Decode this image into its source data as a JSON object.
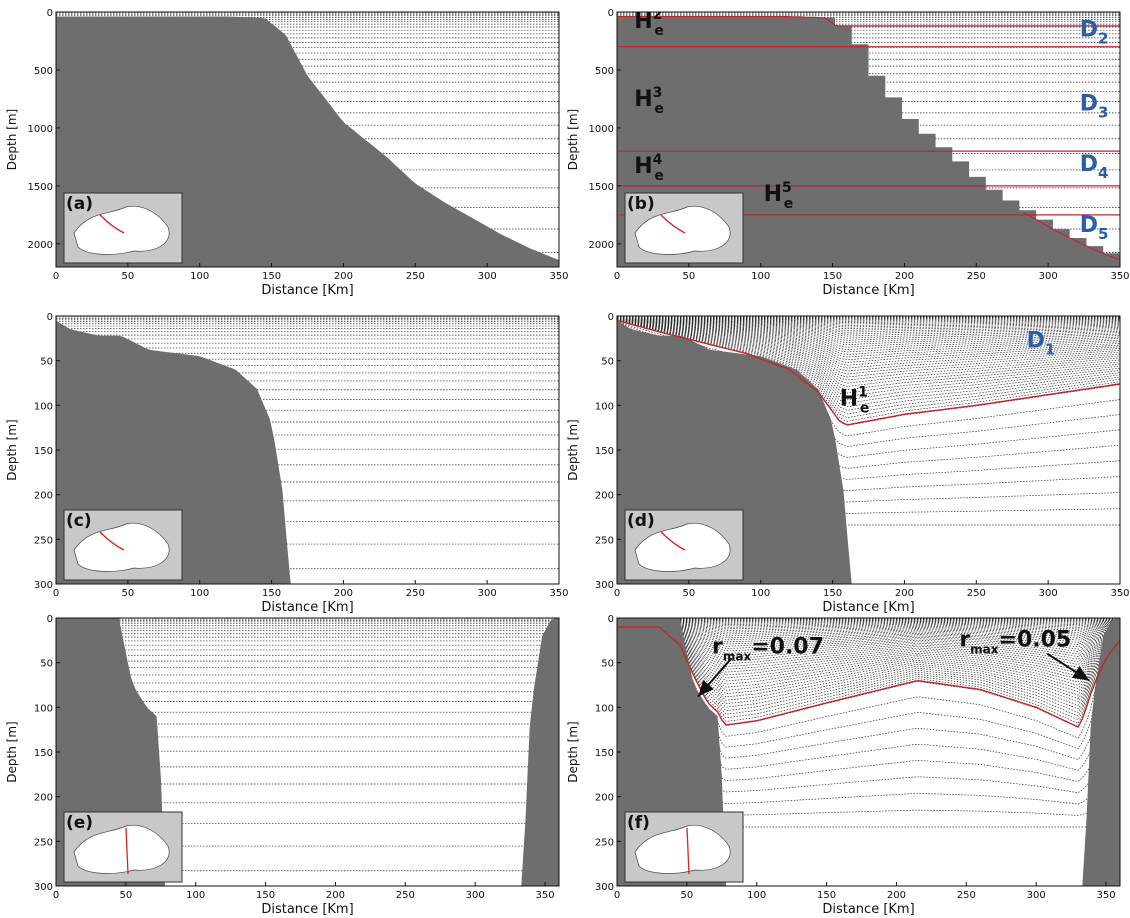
{
  "chart_data": [
    {
      "id": "a",
      "type": "area",
      "panel_label": "(a)",
      "xlabel": "Distance [Km]",
      "ylabel": "Depth [m]",
      "xlim": [
        0,
        350
      ],
      "ylim": [
        0,
        2200
      ],
      "y_inverted": true,
      "xticks": [
        0,
        50,
        100,
        150,
        200,
        250,
        300,
        350
      ],
      "yticks": [
        0,
        500,
        1000,
        1500,
        2000
      ],
      "levels": "z-levels",
      "stepped": false,
      "bathymetry": {
        "x": [
          0,
          120,
          145,
          160,
          175,
          200,
          230,
          250,
          270,
          290,
          310,
          330,
          350
        ],
        "y": [
          40,
          40,
          50,
          200,
          550,
          950,
          1250,
          1480,
          1640,
          1780,
          1920,
          2040,
          2140
        ]
      },
      "annotations": [],
      "inset_map_section": "NW shelf to basin section"
    },
    {
      "id": "b",
      "type": "area",
      "panel_label": "(b)",
      "xlabel": "Distance [Km]",
      "ylabel": "Depth [m]",
      "xlim": [
        0,
        350
      ],
      "ylim": [
        0,
        2200
      ],
      "y_inverted": true,
      "xticks": [
        0,
        50,
        100,
        150,
        200,
        250,
        300,
        350
      ],
      "yticks": [
        0,
        500,
        1000,
        1500,
        2000
      ],
      "levels": "multi-envelope",
      "stepped": true,
      "bathymetry": {
        "x": [
          0,
          120,
          145,
          160,
          175,
          200,
          230,
          250,
          270,
          290,
          310,
          330,
          350
        ],
        "y": [
          40,
          40,
          50,
          200,
          550,
          950,
          1250,
          1480,
          1640,
          1780,
          1920,
          2040,
          2140
        ]
      },
      "envelope_depths": [
        300,
        1200,
        1500,
        1750
      ],
      "annotations": [
        {
          "text": "H",
          "sup": "2",
          "sub": "e",
          "color": "#111111",
          "x": 12,
          "y": 140
        },
        {
          "text": "H",
          "sup": "3",
          "sub": "e",
          "color": "#111111",
          "x": 12,
          "y": 810
        },
        {
          "text": "H",
          "sup": "4",
          "sub": "e",
          "color": "#111111",
          "x": 12,
          "y": 1390
        },
        {
          "text": "H",
          "sup": "5",
          "sub": "e",
          "color": "#111111",
          "x": 102,
          "y": 1630
        },
        {
          "text": "D",
          "sub": "2",
          "color": "#2a5ea8",
          "x": 322,
          "y": 210
        },
        {
          "text": "D",
          "sub": "3",
          "color": "#2a5ea8",
          "x": 322,
          "y": 850
        },
        {
          "text": "D",
          "sub": "4",
          "color": "#2a5ea8",
          "x": 322,
          "y": 1370
        },
        {
          "text": "D",
          "sub": "5",
          "color": "#2a5ea8",
          "x": 322,
          "y": 1900
        }
      ],
      "inset_map_section": "NW shelf to basin section"
    },
    {
      "id": "c",
      "type": "area",
      "panel_label": "(c)",
      "xlabel": "Distance [Km]",
      "ylabel": "Depth [m]",
      "xlim": [
        0,
        350
      ],
      "ylim": [
        0,
        300
      ],
      "y_inverted": true,
      "xticks": [
        0,
        50,
        100,
        150,
        200,
        250,
        300,
        350
      ],
      "yticks": [
        0,
        50,
        100,
        150,
        200,
        250,
        300
      ],
      "levels": "z-levels",
      "stepped": false,
      "bathymetry": {
        "x": [
          0,
          10,
          30,
          45,
          65,
          100,
          125,
          140,
          150,
          158,
          163,
          165
        ],
        "y": [
          5,
          15,
          22,
          22,
          38,
          45,
          60,
          82,
          120,
          200,
          300,
          300
        ]
      },
      "annotations": [],
      "inset_map_section": "NW shelf to basin section"
    },
    {
      "id": "d",
      "type": "area",
      "panel_label": "(d)",
      "xlabel": "Distance [Km]",
      "ylabel": "Depth [m]",
      "xlim": [
        0,
        350
      ],
      "ylim": [
        0,
        300
      ],
      "y_inverted": true,
      "xticks": [
        0,
        50,
        100,
        150,
        200,
        250,
        300,
        350
      ],
      "yticks": [
        0,
        50,
        100,
        150,
        200,
        250,
        300
      ],
      "levels": "s-levels",
      "stepped": false,
      "bathymetry": {
        "x": [
          0,
          10,
          30,
          45,
          65,
          100,
          125,
          140,
          150,
          158,
          163,
          165
        ],
        "y": [
          5,
          15,
          22,
          22,
          38,
          45,
          60,
          82,
          120,
          200,
          300,
          300
        ]
      },
      "envelope": {
        "x": [
          0,
          30,
          60,
          90,
          120,
          140,
          155,
          160,
          200,
          250,
          300,
          350
        ],
        "y": [
          5,
          18,
          30,
          42,
          60,
          85,
          118,
          122,
          110,
          100,
          88,
          76
        ]
      },
      "annotations": [
        {
          "text": "D",
          "sub": "1",
          "color": "#2a5ea8",
          "x": 285,
          "y": 35
        },
        {
          "text": "H",
          "sup": "1",
          "sub": "e",
          "color": "#111111",
          "x": 155,
          "y": 100
        }
      ],
      "inset_map_section": "NW shelf to basin section"
    },
    {
      "id": "e",
      "type": "area",
      "panel_label": "(e)",
      "xlabel": "Distance [Km]",
      "ylabel": "Depth [m]",
      "xlim": [
        0,
        360
      ],
      "ylim": [
        0,
        300
      ],
      "y_inverted": true,
      "xticks": [
        0,
        50,
        100,
        150,
        200,
        250,
        300,
        350
      ],
      "yticks": [
        0,
        50,
        100,
        150,
        200,
        250,
        300
      ],
      "levels": "z-levels",
      "stepped": false,
      "bathymetry": {
        "x": [
          0,
          45,
          50,
          55,
          65,
          72,
          76,
          77,
          335,
          337,
          342,
          348,
          355,
          360
        ],
        "y": [
          0,
          0,
          40,
          75,
          100,
          110,
          200,
          300,
          300,
          150,
          80,
          20,
          0,
          0
        ]
      },
      "annotations": [],
      "inset_map_section": "N-S cross-basin section"
    },
    {
      "id": "f",
      "type": "area",
      "panel_label": "(f)",
      "xlabel": "Distance [Km]",
      "ylabel": "Depth [m]",
      "xlim": [
        0,
        360
      ],
      "ylim": [
        0,
        300
      ],
      "y_inverted": true,
      "xticks": [
        0,
        50,
        100,
        150,
        200,
        250,
        300,
        350
      ],
      "yticks": [
        0,
        50,
        100,
        150,
        200,
        250,
        300
      ],
      "levels": "s-levels",
      "stepped": false,
      "bathymetry": {
        "x": [
          0,
          45,
          50,
          55,
          65,
          72,
          76,
          77,
          335,
          337,
          342,
          348,
          355,
          360
        ],
        "y": [
          0,
          0,
          40,
          75,
          100,
          110,
          200,
          300,
          300,
          150,
          80,
          20,
          0,
          0
        ]
      },
      "envelope": {
        "x": [
          0,
          30,
          45,
          55,
          65,
          72,
          77,
          100,
          150,
          215,
          260,
          300,
          330,
          334,
          340,
          350,
          360
        ],
        "y": [
          10,
          10,
          30,
          65,
          95,
          105,
          120,
          115,
          95,
          70,
          80,
          100,
          122,
          110,
          80,
          45,
          25
        ]
      },
      "annotations": [
        {
          "text": "r",
          "sub": "max",
          "suffix": "=0.07",
          "color": "#111111",
          "x": 68,
          "y": 40
        },
        {
          "text": "r",
          "sub": "max",
          "suffix": "=0.05",
          "color": "#111111",
          "x": 245,
          "y": 32
        }
      ],
      "arrows": [
        {
          "from": [
            82,
            45
          ],
          "to": [
            58,
            88
          ]
        },
        {
          "from": [
            308,
            40
          ],
          "to": [
            338,
            70
          ]
        }
      ],
      "inset_map_section": "N-S cross-basin section"
    }
  ],
  "colors": {
    "land": "#6e6e6e",
    "line": "#2b2b2b",
    "envelope": "#c0262c",
    "label_blue": "#2a5ea8",
    "map_sea": "#ffffff",
    "map_land": "#c8c8c8",
    "section": "#e0201c"
  }
}
